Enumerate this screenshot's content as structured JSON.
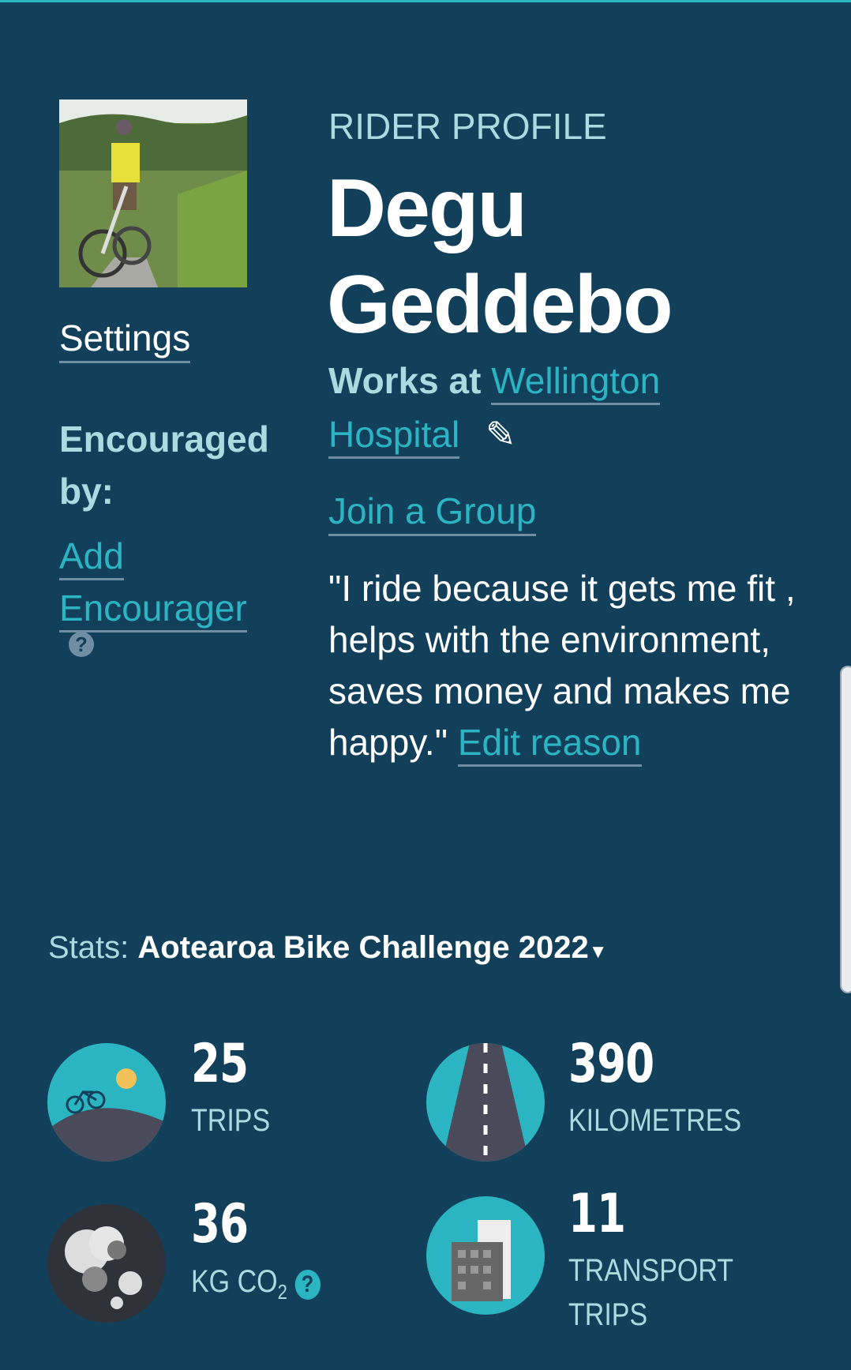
{
  "profile": {
    "section_label": "RIDER PROFILE",
    "first_name": "Degu",
    "last_name": "Geddebo",
    "works_at_label": "Works at",
    "workplace_line1": "Wellington",
    "workplace_line2": "Hospital",
    "join_group": "Join a Group",
    "reason": "\"I ride because it gets me fit , helps with the environment, saves money and makes me happy.\"",
    "edit_reason": "Edit reason"
  },
  "sidebar": {
    "settings": "Settings",
    "encouraged_by": "Encouraged by:",
    "add_encourager_1": "Add",
    "add_encourager_2": "Encourager",
    "help": "?"
  },
  "stats": {
    "label": "Stats:",
    "challenge": "Aotearoa Bike Challenge 2022",
    "items": [
      {
        "value": "25",
        "label": "TRIPS",
        "icon": "bike-hill-sun-icon"
      },
      {
        "value": "390",
        "label": "KILOMETRES",
        "icon": "road-icon"
      },
      {
        "value": "36",
        "label": "KG CO",
        "sub": "2",
        "help": "?",
        "icon": "smoke-cloud-icon"
      },
      {
        "value": "11",
        "label_1": "TRANSPORT",
        "label_2": "TRIPS",
        "icon": "building-icon"
      }
    ]
  },
  "colors": {
    "background": "#12405a",
    "accent": "#2bb5c3",
    "light_text": "#a9dbe0"
  }
}
